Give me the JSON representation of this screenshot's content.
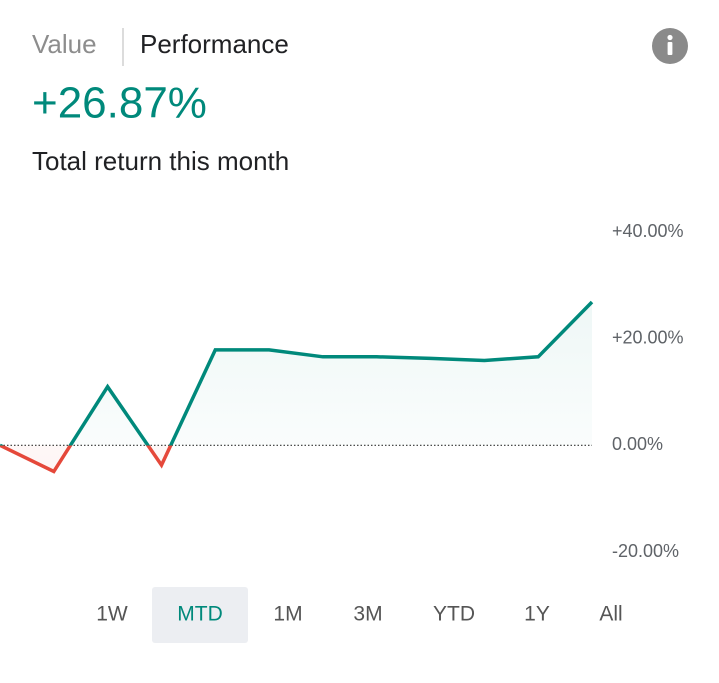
{
  "header": {
    "tabs": [
      "Value",
      "Performance"
    ],
    "headline": "+26.87%",
    "subtitle": "Total return this month"
  },
  "chart_data": {
    "type": "line",
    "series": [
      {
        "color": "#00897b",
        "negative_color": "#e5483a",
        "values": [
          0.0,
          -4.9,
          11.0,
          -3.7,
          17.9,
          17.9,
          16.6,
          16.6,
          16.3,
          15.9,
          16.6,
          26.87
        ]
      }
    ],
    "ylim": [
      -20,
      40
    ],
    "yticks": [
      {
        "value": 40,
        "label": "+40.00%"
      },
      {
        "value": 20,
        "label": "+20.00%"
      },
      {
        "value": 0,
        "label": "0.00%"
      },
      {
        "value": -20,
        "label": "-20.00%"
      }
    ],
    "zero_line": true,
    "grid": false
  },
  "range_buttons": {
    "labels": [
      "1W",
      "MTD",
      "1M",
      "3M",
      "YTD",
      "1Y",
      "All"
    ],
    "selected": 1
  }
}
